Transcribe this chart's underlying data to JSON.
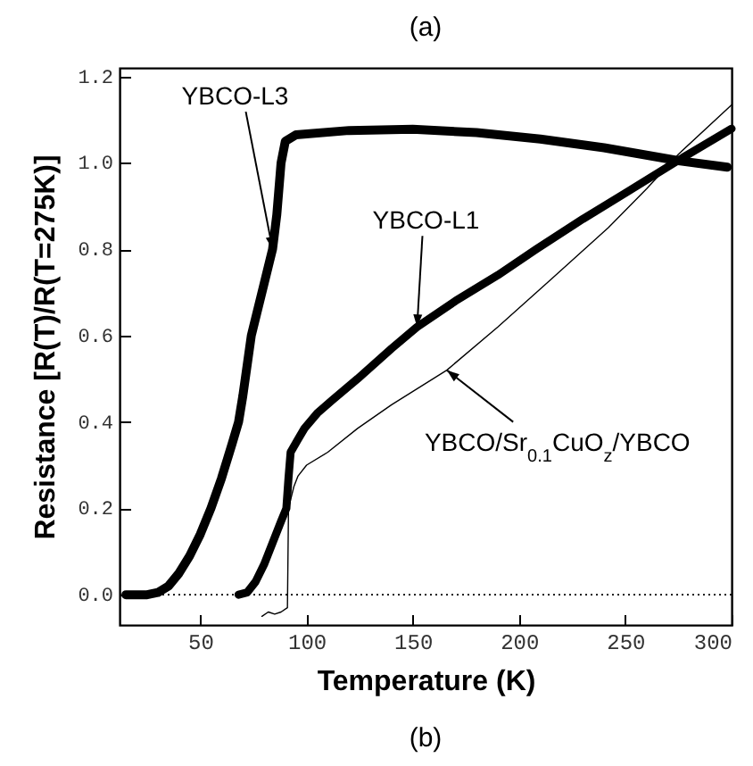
{
  "chart_data": {
    "type": "line",
    "title": "(a)",
    "xlabel": "Temperature (K)",
    "ylabel": "Resistance [R(T)/R(T=275K)]",
    "annotations": [
      "(b)"
    ],
    "xlim": [
      12,
      300
    ],
    "xticks": [
      50,
      100,
      150,
      200,
      250,
      300
    ],
    "ylim": [
      -0.07,
      1.22
    ],
    "yticks": [
      {
        "value": 0,
        "label": "0.0"
      },
      0.2,
      0.4,
      0.6,
      0.8,
      {
        "value": 1,
        "label": "1.0"
      },
      1.2
    ],
    "grid": false,
    "line_style": "solid",
    "marker": "none",
    "ref_lines": [
      {
        "axis": "y",
        "value": 0,
        "line_style": "dotted",
        "color": "#000000"
      }
    ],
    "series": [
      {
        "name": "YBCO-L3",
        "color": "#000000",
        "x": [
          15,
          25,
          30,
          35,
          40,
          45,
          50,
          55,
          60,
          65,
          68,
          70,
          74,
          80,
          84,
          86,
          88,
          90,
          95,
          120,
          150,
          180,
          210,
          240,
          275,
          298
        ],
        "values": [
          0,
          0,
          0.005,
          0.02,
          0.05,
          0.09,
          0.14,
          0.2,
          0.27,
          0.35,
          0.4,
          0.46,
          0.6,
          0.72,
          0.8,
          0.88,
          1.0,
          1.05,
          1.065,
          1.075,
          1.078,
          1.07,
          1.055,
          1.035,
          1.005,
          0.99
        ]
      },
      {
        "name": "YBCO-L1",
        "color": "#000000",
        "x": [
          68,
          72,
          76,
          80,
          84,
          88,
          90.5,
          91.5,
          92.5,
          96,
          99,
          105,
          112,
          124,
          140,
          152,
          170,
          190,
          208,
          230,
          250,
          275,
          300
        ],
        "values": [
          0,
          0.005,
          0.03,
          0.07,
          0.12,
          0.17,
          0.2,
          0.27,
          0.33,
          0.36,
          0.385,
          0.42,
          0.45,
          0.5,
          0.57,
          0.62,
          0.68,
          0.74,
          0.8,
          0.87,
          0.93,
          1.006,
          1.079
        ]
      },
      {
        "name": "YBCO/Sr$_{0.1}$CuO$_{z}$/YBCO",
        "color": "#000000",
        "x": [
          79,
          82,
          85,
          88,
          91,
          91.5,
          94,
          96,
          100,
          110,
          124,
          140,
          166,
          190,
          215,
          242,
          260,
          275,
          300
        ],
        "values": [
          -0.05,
          -0.04,
          -0.045,
          -0.04,
          -0.03,
          0.2,
          0.25,
          0.275,
          0.3,
          0.33,
          0.385,
          0.44,
          0.52,
          0.62,
          0.73,
          0.85,
          0.94,
          1.02,
          1.134
        ]
      }
    ]
  }
}
